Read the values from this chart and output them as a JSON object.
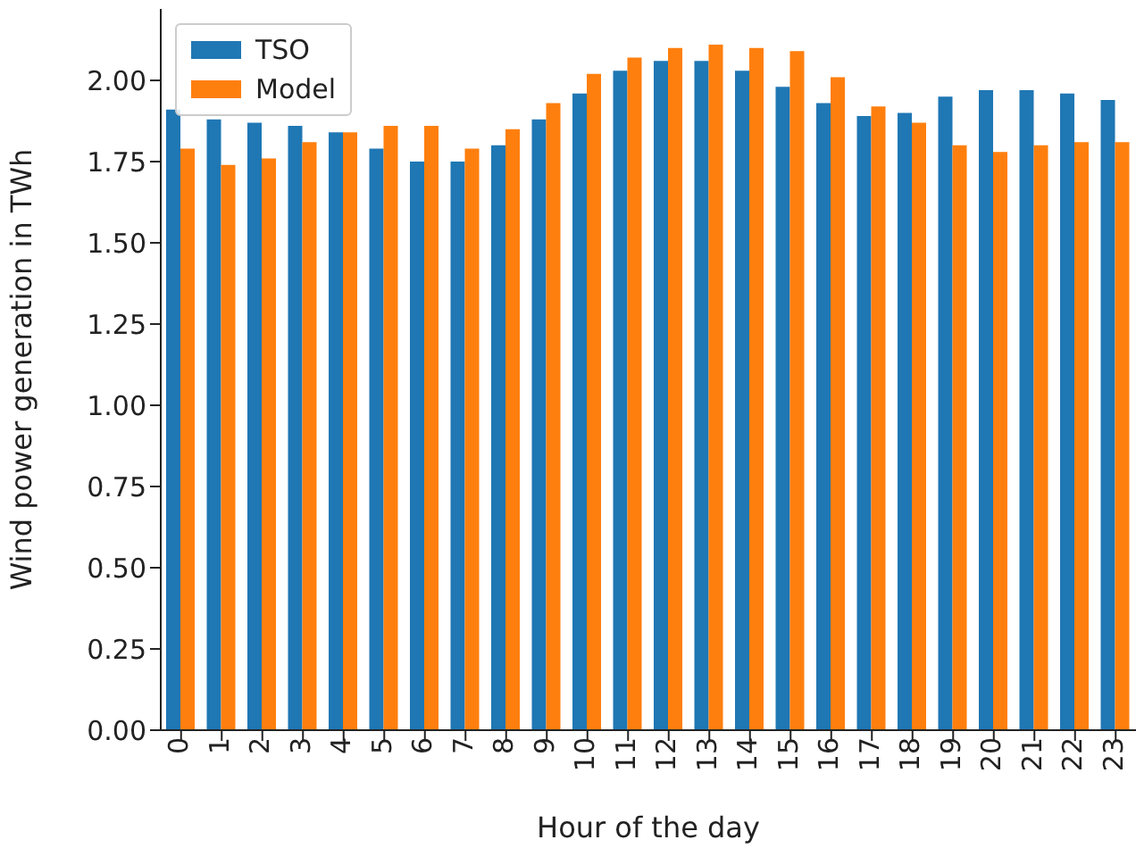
{
  "chart_data": {
    "type": "bar",
    "xlabel": "Hour of the day",
    "ylabel": "Wind power generation in TWh",
    "categories": [
      "0",
      "1",
      "2",
      "3",
      "4",
      "5",
      "6",
      "7",
      "8",
      "9",
      "10",
      "11",
      "12",
      "13",
      "14",
      "15",
      "16",
      "17",
      "18",
      "19",
      "20",
      "21",
      "22",
      "23"
    ],
    "series": [
      {
        "name": "TSO",
        "color": "#1f77b4",
        "values": [
          1.91,
          1.88,
          1.87,
          1.86,
          1.84,
          1.79,
          1.75,
          1.75,
          1.8,
          1.88,
          1.96,
          2.03,
          2.06,
          2.06,
          2.03,
          1.98,
          1.93,
          1.89,
          1.9,
          1.95,
          1.97,
          1.97,
          1.96,
          1.94
        ]
      },
      {
        "name": "Model",
        "color": "#ff7f0e",
        "values": [
          1.79,
          1.74,
          1.76,
          1.81,
          1.84,
          1.86,
          1.86,
          1.79,
          1.85,
          1.93,
          2.02,
          2.07,
          2.1,
          2.11,
          2.1,
          2.09,
          2.01,
          1.92,
          1.87,
          1.8,
          1.78,
          1.8,
          1.81,
          1.81
        ]
      }
    ],
    "ylim": [
      0,
      2.22
    ],
    "yticks": [
      {
        "value": 0,
        "label": "0.00"
      },
      {
        "value": 0.25,
        "label": "0.25"
      },
      {
        "value": 0.5,
        "label": "0.50"
      },
      {
        "value": 0.75,
        "label": "0.75"
      },
      {
        "value": 1,
        "label": "1.00"
      },
      {
        "value": 1.25,
        "label": "1.25"
      },
      {
        "value": 1.5,
        "label": "1.50"
      },
      {
        "value": 1.75,
        "label": "1.75"
      },
      {
        "value": 2,
        "label": "2.00"
      }
    ],
    "grid": false,
    "legend": "top left"
  }
}
